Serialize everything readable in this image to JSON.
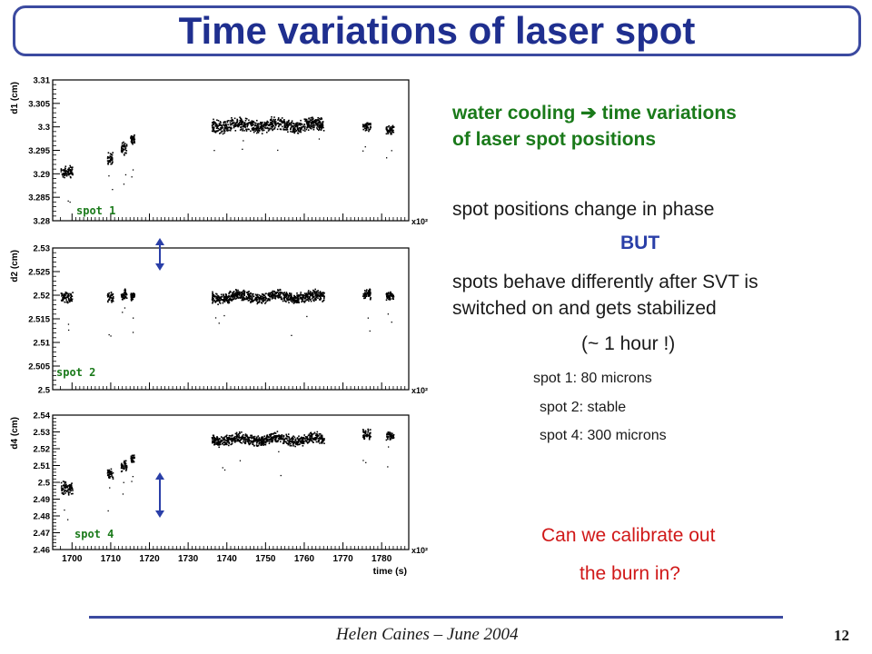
{
  "slide": {
    "title": "Time variations of laser spot",
    "footer": "Helen Caines – June 2004",
    "page_number": "12"
  },
  "text": {
    "cooling_line1": "water cooling  ➔ time variations",
    "cooling_line2": "of  laser spot positions",
    "phase": "spot positions change in phase",
    "but": "BUT",
    "differ_line1": "spots behave differently after SVT is",
    "differ_line2": "switched on and gets  stabilized",
    "hour": "(~ 1 hour !)",
    "spot1": "spot 1: 80 microns",
    "spot2": "spot 2: stable",
    "spot4": "spot 4: 300 microns",
    "question_line1": "Can we calibrate out",
    "question_line2": "the burn in?"
  },
  "colors": {
    "title": "#1f2f8f",
    "green_text": "#1a7a1a",
    "but_text": "#2a3fa8",
    "question_text": "#d01818",
    "spot_label": "#1a7a1a",
    "arrow": "#2a3fa8",
    "markers": "#000000"
  },
  "chart_data": [
    {
      "type": "scatter",
      "ylabel": "d1 (cm)",
      "spot_label": "spot 1",
      "x_unit": "x10²",
      "xlim": [
        1695,
        1787
      ],
      "ylim": [
        3.28,
        3.31
      ],
      "yticks": [
        3.28,
        3.285,
        3.29,
        3.295,
        3.3,
        3.305,
        3.31
      ],
      "ytick_labels": [
        "3.28",
        "3.285",
        "3.29",
        "3.295",
        "3.3",
        "3.305",
        "3.31"
      ],
      "clusters": [
        {
          "x": [
            1697,
            1700
          ],
          "y": [
            3.2915,
            3.2895
          ]
        },
        {
          "x": [
            1709,
            1710.5
          ],
          "y": [
            3.2945,
            3.2925
          ]
        },
        {
          "x": [
            1712.5,
            1714
          ],
          "y": [
            3.2965,
            3.2945
          ]
        },
        {
          "x": [
            1715,
            1716
          ],
          "y": [
            3.298,
            3.297
          ]
        },
        {
          "x": [
            1736,
            1765
          ],
          "y": [
            3.3015,
            3.2995
          ]
        },
        {
          "x": [
            1775,
            1777
          ],
          "y": [
            3.301,
            3.2995
          ]
        },
        {
          "x": [
            1781,
            1783
          ],
          "y": [
            3.3,
            3.299
          ]
        }
      ]
    },
    {
      "type": "scatter",
      "ylabel": "d2 (cm)",
      "spot_label": "spot 2",
      "x_unit": "x10²",
      "xlim": [
        1695,
        1787
      ],
      "ylim": [
        2.5,
        2.53
      ],
      "yticks": [
        2.5,
        2.505,
        2.51,
        2.515,
        2.52,
        2.525,
        2.53
      ],
      "ytick_labels": [
        "2.5",
        "2.505",
        "2.51",
        "2.515",
        "2.52",
        "2.525",
        "2.53"
      ],
      "clusters": [
        {
          "x": [
            1697,
            1700
          ],
          "y": [
            2.5205,
            2.519
          ]
        },
        {
          "x": [
            1709,
            1710.5
          ],
          "y": [
            2.5205,
            2.519
          ]
        },
        {
          "x": [
            1712.5,
            1714
          ],
          "y": [
            2.521,
            2.5195
          ]
        },
        {
          "x": [
            1715,
            1716
          ],
          "y": [
            2.5205,
            2.5195
          ]
        },
        {
          "x": [
            1736,
            1765
          ],
          "y": [
            2.5205,
            2.519
          ]
        },
        {
          "x": [
            1775,
            1777
          ],
          "y": [
            2.521,
            2.5195
          ]
        },
        {
          "x": [
            1781,
            1783
          ],
          "y": [
            2.5205,
            2.5195
          ]
        }
      ]
    },
    {
      "type": "scatter",
      "ylabel": "d4 (cm)",
      "spot_label": "spot 4",
      "x_unit": "x10²",
      "xlabel": "time (s)",
      "xlim": [
        1695,
        1787
      ],
      "xticks": [
        1700,
        1710,
        1720,
        1730,
        1740,
        1750,
        1760,
        1770,
        1780
      ],
      "xtick_labels": [
        "1700",
        "1710",
        "1720",
        "1730",
        "1740",
        "1750",
        "1760",
        "1770",
        "1780"
      ],
      "ylim": [
        2.46,
        2.54
      ],
      "yticks": [
        2.46,
        2.47,
        2.48,
        2.49,
        2.5,
        2.51,
        2.52,
        2.53,
        2.54
      ],
      "ytick_labels": [
        "2.46",
        "2.47",
        "2.48",
        "2.49",
        "2.5",
        "2.51",
        "2.52",
        "2.53",
        "2.54"
      ],
      "clusters": [
        {
          "x": [
            1697,
            1700
          ],
          "y": [
            2.5,
            2.494
          ]
        },
        {
          "x": [
            1709,
            1710.5
          ],
          "y": [
            2.507,
            2.503
          ]
        },
        {
          "x": [
            1712.5,
            1714
          ],
          "y": [
            2.512,
            2.508
          ]
        },
        {
          "x": [
            1715,
            1716
          ],
          "y": [
            2.515,
            2.513
          ]
        },
        {
          "x": [
            1736,
            1765
          ],
          "y": [
            2.528,
            2.524
          ]
        },
        {
          "x": [
            1775,
            1777
          ],
          "y": [
            2.531,
            2.527
          ]
        },
        {
          "x": [
            1781,
            1783
          ],
          "y": [
            2.529,
            2.527
          ]
        }
      ]
    }
  ]
}
